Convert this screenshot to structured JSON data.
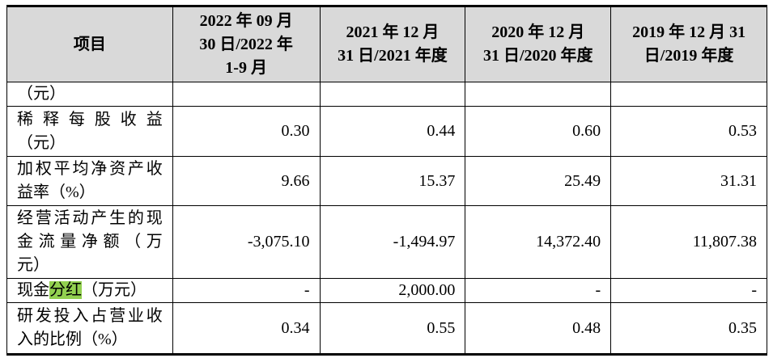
{
  "table": {
    "header": [
      [
        "项目"
      ],
      [
        "2022 年 09 月",
        "30 日/2022 年",
        "1-9 月"
      ],
      [
        "2021 年 12 月",
        "31 日/2021 年度"
      ],
      [
        "2020 年 12 月",
        "31 日/2020 年度"
      ],
      [
        "2019 年 12 月 31",
        "日/2019 年度"
      ]
    ],
    "rows": [
      {
        "label": [
          "（元）"
        ],
        "cells": [
          "",
          "",
          "",
          ""
        ]
      },
      {
        "label": [
          "稀释每股收益",
          "（元）"
        ],
        "cells": [
          "0.30",
          "0.44",
          "0.60",
          "0.53"
        ]
      },
      {
        "label": [
          "加权平均净资产收",
          "益率（%）"
        ],
        "cells": [
          "9.66",
          "15.37",
          "25.49",
          "31.31"
        ]
      },
      {
        "label": [
          "经营活动产生的现",
          "金流量净额（万",
          "元）"
        ],
        "cells": [
          "-3,075.10",
          "-1,494.97",
          "14,372.40",
          "11,807.38"
        ]
      },
      {
        "label_parts": [
          "现金",
          "分红",
          "（万元）"
        ],
        "cells": [
          "-",
          "2,000.00",
          "-",
          "-"
        ]
      },
      {
        "label": [
          "研发投入占营业收",
          "入的比例（%）"
        ],
        "cells": [
          "0.34",
          "0.55",
          "0.48",
          "0.35"
        ]
      }
    ]
  }
}
